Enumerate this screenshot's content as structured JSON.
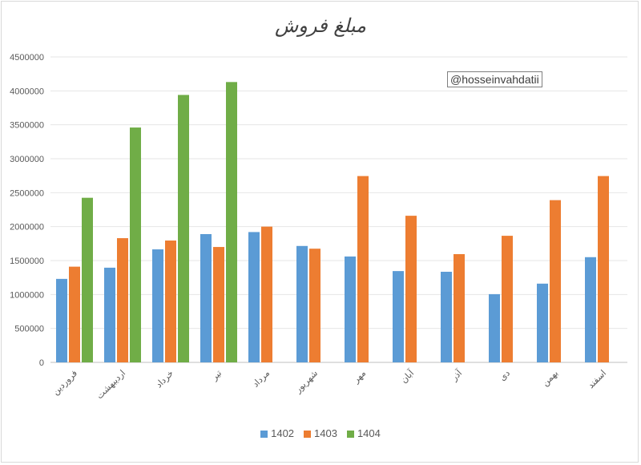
{
  "chart_data": {
    "type": "bar",
    "title": "مبلغ فروش",
    "categories": [
      "فروردین",
      "اردیبهشت",
      "خرداد",
      "تیر",
      "مرداد",
      "شهریور",
      "مهر",
      "آبان",
      "آذر",
      "دی",
      "بهمن",
      "اسفند"
    ],
    "series": [
      {
        "name": "1402",
        "color": "#5b9bd5",
        "values": [
          1230000,
          1395000,
          1665000,
          1890000,
          1920000,
          1715000,
          1560000,
          1345000,
          1335000,
          1005000,
          1160000,
          1550000
        ]
      },
      {
        "name": "1403",
        "color": "#ed7d31",
        "values": [
          1410000,
          1830000,
          1795000,
          1700000,
          2000000,
          1675000,
          2745000,
          2160000,
          1595000,
          1865000,
          2390000,
          2745000
        ]
      },
      {
        "name": "1404",
        "color": "#70ad47",
        "values": [
          2425000,
          3460000,
          3940000,
          4130000,
          null,
          null,
          null,
          null,
          null,
          null,
          null,
          null
        ]
      }
    ],
    "ylim": [
      0,
      4500000
    ],
    "yticks": [
      "0",
      "500000",
      "1000000",
      "1500000",
      "2000000",
      "2500000",
      "3000000",
      "3500000",
      "4000000",
      "4500000"
    ],
    "grid": true,
    "legend_position": "bottom"
  },
  "watermark": "@hosseinvahdatii"
}
